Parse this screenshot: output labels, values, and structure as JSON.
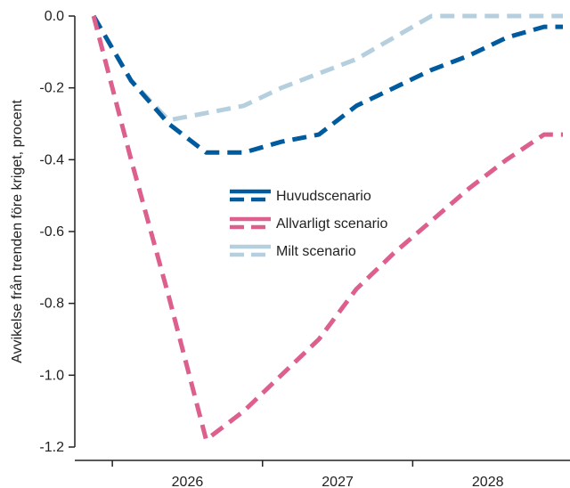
{
  "chart_data": {
    "type": "line",
    "ylabel": "Avvikelse från trenden före kriget, procent",
    "xlabel": "",
    "x_tick_labels": [
      "2026",
      "2027",
      "2028"
    ],
    "y_ticks": [
      0.0,
      -0.2,
      -0.4,
      -0.6,
      -0.8,
      -1.0,
      -1.2
    ],
    "y_tick_labels": [
      "0.0",
      "-0.2",
      "-0.4",
      "-0.6",
      "-0.8",
      "-1.0",
      "-1.2"
    ],
    "ylim": [
      -1.22,
      0.0
    ],
    "xlim": [
      2025.25,
      2028.5
    ],
    "grid": false,
    "legend_position": "center",
    "series": [
      {
        "name": "Huvudscenario",
        "color": "#005a9e",
        "x": [
          2025.375,
          2025.625,
          2025.875,
          2026.125,
          2026.375,
          2026.625,
          2026.875,
          2027.125,
          2027.375,
          2027.625,
          2027.875,
          2028.125,
          2028.375,
          2028.5
        ],
        "values": [
          0.0,
          -0.18,
          -0.3,
          -0.38,
          -0.38,
          -0.35,
          -0.33,
          -0.25,
          -0.2,
          -0.15,
          -0.11,
          -0.06,
          -0.03,
          -0.03
        ]
      },
      {
        "name": "Allvarligt scenario",
        "color": "#dc5f8e",
        "x": [
          2025.375,
          2025.625,
          2025.875,
          2026.125,
          2026.375,
          2026.625,
          2026.875,
          2027.125,
          2027.375,
          2027.625,
          2027.875,
          2028.125,
          2028.375,
          2028.5
        ],
        "values": [
          0.0,
          -0.4,
          -0.78,
          -1.18,
          -1.1,
          -1.0,
          -0.9,
          -0.76,
          -0.66,
          -0.57,
          -0.48,
          -0.4,
          -0.33,
          -0.33
        ]
      },
      {
        "name": "Milt scenario",
        "color": "#b5cfdf",
        "x": [
          2025.375,
          2025.625,
          2025.875,
          2026.125,
          2026.375,
          2026.625,
          2026.875,
          2027.125,
          2027.375,
          2027.625,
          2027.875,
          2028.125,
          2028.375,
          2028.5
        ],
        "values": [
          0.0,
          -0.18,
          -0.29,
          -0.27,
          -0.25,
          -0.2,
          -0.16,
          -0.12,
          -0.06,
          0.0,
          0.0,
          0.0,
          0.0,
          0.0
        ]
      }
    ]
  }
}
